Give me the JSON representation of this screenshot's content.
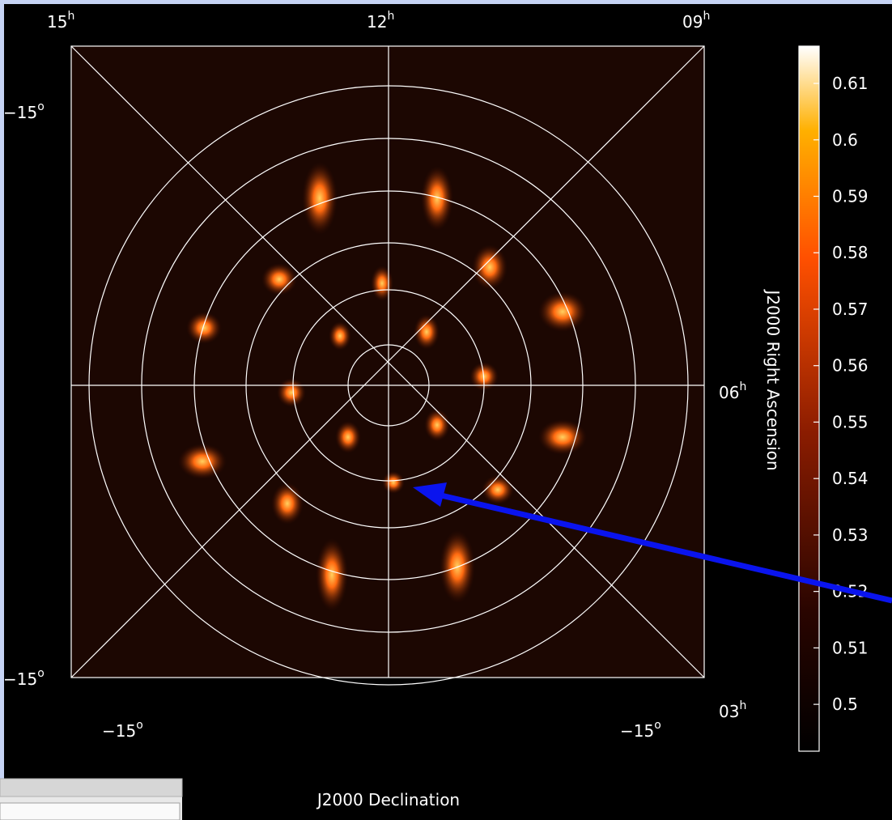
{
  "plot": {
    "top_ticks": [
      {
        "text": "15",
        "sup": "h"
      },
      {
        "text": "12",
        "sup": "h"
      },
      {
        "text": "09",
        "sup": "h"
      }
    ],
    "left_ticks": [
      {
        "text": "−15",
        "sup": "o"
      },
      {
        "text": "−15",
        "sup": "o"
      }
    ],
    "right_ticks": [
      {
        "text": "06",
        "sup": "h"
      },
      {
        "text": "03",
        "sup": "h"
      }
    ],
    "bottom_ticks": [
      {
        "text": "−15",
        "sup": "o"
      },
      {
        "text": "−15",
        "sup": "o"
      }
    ],
    "x_axis_label": "J2000 Declination",
    "y_axis_label": "J2000 Right Ascension"
  },
  "colorbar": {
    "lim": [
      0.4917,
      0.6166
    ],
    "ticks": [
      0.5,
      0.51,
      0.52,
      0.53,
      0.54,
      0.55,
      0.56,
      0.57,
      0.58,
      0.59,
      0.6,
      0.61
    ]
  }
}
